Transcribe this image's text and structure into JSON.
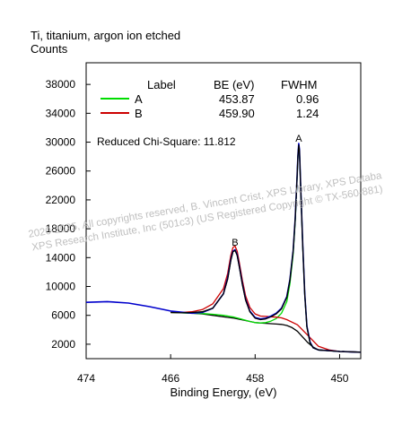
{
  "header": {
    "title": "Ti, titanium, argon ion etched",
    "ylabel": "Counts"
  },
  "watermark": {
    "line1": "2020-2025,  All copyrights reserved,   B. Vincent Crist,   XPS Library, XPS Databa",
    "line2": "XPS Research Institute, Inc (501c3)   (US Registered Copyright © TX-560-881)"
  },
  "legend": {
    "headers": {
      "label": "Label",
      "be": "BE (eV)",
      "fwhm": "FWHM"
    },
    "rows": [
      {
        "label": "A",
        "be": "453.87",
        "fwhm": "0.96",
        "color": "#00dd00"
      },
      {
        "label": "B",
        "be": "459.90",
        "fwhm": "1.24",
        "color": "#cc0000"
      }
    ],
    "chi_square": "Reduced Chi-Square: 11.812"
  },
  "peak_markers": [
    {
      "text": "A",
      "x": 453.87,
      "y": 29800
    },
    {
      "text": "B",
      "x": 459.9,
      "y": 15400
    }
  ],
  "chart_data": {
    "type": "line",
    "title": "Ti, titanium, argon ion etched",
    "xlabel": "Binding Energy, (eV)",
    "ylabel": "Counts",
    "x_reversed": true,
    "xlim": [
      474,
      448
    ],
    "ylim": [
      0,
      41000
    ],
    "x_ticks": [
      474,
      466,
      458,
      450
    ],
    "y_ticks": [
      2000,
      6000,
      10000,
      14000,
      18000,
      22000,
      26000,
      30000,
      34000,
      38000
    ],
    "x_tick_labels": [
      "474",
      "466",
      "458",
      "450"
    ],
    "y_tick_labels": [
      "2000",
      "6000",
      "10000",
      "14000",
      "18000",
      "22000",
      "26000",
      "30000",
      "34000",
      "38000"
    ],
    "series": [
      {
        "name": "data",
        "color": "#0000cc",
        "x": [
          474,
          472,
          470,
          468,
          466,
          464,
          463,
          462,
          461,
          460.6,
          460.3,
          460.1,
          459.9,
          459.7,
          459.5,
          459.2,
          458.9,
          458.5,
          458,
          457.5,
          457,
          456.5,
          456,
          455.5,
          455,
          454.7,
          454.4,
          454.2,
          454.05,
          453.95,
          453.87,
          453.8,
          453.7,
          453.5,
          453.3,
          453.1,
          452.8,
          452.5,
          452,
          451,
          450,
          449,
          448
        ],
        "y": [
          7800,
          7900,
          7700,
          7200,
          6600,
          6300,
          6400,
          7000,
          9000,
          11200,
          13700,
          14900,
          15100,
          14400,
          12800,
          10300,
          8200,
          6600,
          5700,
          5500,
          5600,
          5900,
          6300,
          7000,
          8600,
          11000,
          15000,
          19500,
          24500,
          28200,
          29800,
          29000,
          24500,
          16000,
          9000,
          4500,
          2300,
          1500,
          1200,
          1100,
          1000,
          950,
          900
        ]
      },
      {
        "name": "envelope",
        "color": "#000000",
        "x": [
          466,
          465,
          464,
          463,
          462,
          461,
          460.6,
          460.3,
          460.1,
          459.9,
          459.7,
          459.5,
          459.2,
          458.9,
          458.5,
          458,
          457.5,
          457,
          456.5,
          456,
          455.5,
          455,
          454.7,
          454.4,
          454.2,
          454.05,
          453.95,
          453.87,
          453.8,
          453.7,
          453.5,
          453.3,
          453.1,
          452.8,
          452.5,
          452,
          451,
          450,
          449,
          448
        ],
        "y": [
          6400,
          6350,
          6400,
          6500,
          7000,
          9000,
          11000,
          13600,
          14800,
          15000,
          14300,
          12700,
          10200,
          8100,
          6500,
          5600,
          5400,
          5500,
          5800,
          6200,
          6900,
          8500,
          10900,
          14900,
          19400,
          24400,
          28100,
          29600,
          28800,
          24300,
          15800,
          8900,
          4400,
          2200,
          1500,
          1200,
          1100,
          1000,
          950,
          900
        ]
      },
      {
        "name": "A",
        "color": "#00dd00",
        "x": [
          466,
          465,
          464,
          463,
          462,
          461,
          460,
          459.5,
          459,
          458.5,
          458,
          457.5,
          457,
          456.5,
          456,
          455.5,
          455,
          454.7,
          454.4,
          454.2,
          454.05,
          453.95,
          453.87,
          453.8,
          453.7,
          453.5,
          453.3,
          453.1,
          452.8,
          452.5,
          452,
          451,
          450,
          448
        ],
        "y": [
          6400,
          6350,
          6300,
          6250,
          6150,
          6000,
          5750,
          5550,
          5350,
          5150,
          5000,
          4950,
          5000,
          5200,
          5550,
          6300,
          7900,
          10400,
          14500,
          19100,
          24200,
          28000,
          29600,
          28800,
          24300,
          15800,
          8900,
          4400,
          2200,
          1500,
          1200,
          1100,
          1000,
          900
        ]
      },
      {
        "name": "B",
        "color": "#cc0000",
        "x": [
          466,
          465,
          464,
          463,
          462,
          461,
          460.6,
          460.3,
          460.1,
          459.9,
          459.7,
          459.5,
          459.2,
          458.9,
          458.5,
          458,
          457.5,
          457,
          456.5,
          456,
          455.5,
          455,
          454,
          453,
          452,
          451,
          450,
          448
        ],
        "y": [
          6400,
          6400,
          6500,
          6800,
          7600,
          9700,
          11800,
          14300,
          15400,
          15600,
          14900,
          13300,
          10800,
          8700,
          7100,
          6200,
          5900,
          5850,
          5800,
          5750,
          5650,
          5400,
          4700,
          3200,
          1700,
          1200,
          1000,
          900
        ]
      },
      {
        "name": "background",
        "color": "#000000",
        "x": [
          466,
          465,
          464,
          463,
          462,
          461,
          460,
          459,
          458,
          457,
          456.5,
          456,
          455.5,
          455,
          454.5,
          454,
          453.5,
          453,
          452.5,
          452,
          451,
          450,
          448
        ],
        "y": [
          6400,
          6350,
          6300,
          6200,
          6000,
          5800,
          5600,
          5300,
          5000,
          4900,
          4850,
          4800,
          4750,
          4600,
          4300,
          3800,
          3000,
          2200,
          1600,
          1200,
          1100,
          1000,
          900
        ]
      }
    ]
  }
}
